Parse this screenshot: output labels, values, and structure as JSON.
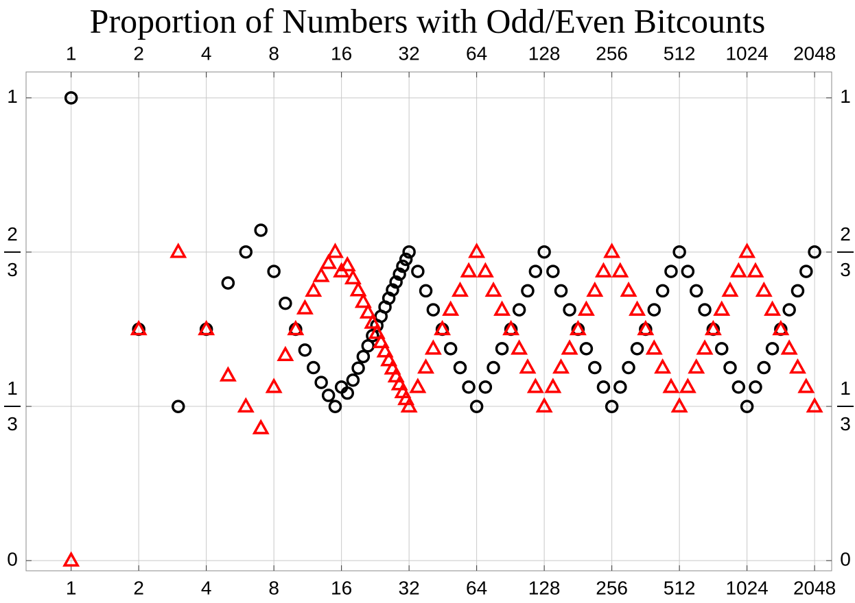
{
  "chart_data": {
    "type": "scatter",
    "title": "Proportion of Numbers with Odd/Even Bitcounts",
    "x": [
      1,
      2,
      3,
      4,
      5,
      6,
      7,
      8,
      9,
      10,
      11,
      12,
      13,
      14,
      15,
      16,
      17,
      18,
      19,
      20,
      21,
      22,
      23,
      24,
      25,
      26,
      27,
      28,
      29,
      30,
      31,
      32,
      35,
      38,
      41,
      45,
      49,
      54,
      59,
      64,
      70,
      76,
      83,
      91,
      99,
      108,
      117,
      128,
      140,
      152,
      166,
      181,
      197,
      215,
      235,
      256,
      279,
      304,
      332,
      362,
      395,
      431,
      470,
      512,
      558,
      609,
      664,
      724,
      790,
      861,
      939,
      1024,
      1117,
      1218,
      1328,
      1448,
      1579,
      1722,
      1878,
      2048
    ],
    "series": [
      {
        "color": "#000000",
        "marker": "circle",
        "values": [
          1,
          0.5,
          0.333,
          0.5,
          0.6,
          0.667,
          0.714,
          0.625,
          0.556,
          0.5,
          0.455,
          0.417,
          0.385,
          0.357,
          0.333,
          0.375,
          0.362,
          0.39,
          0.416,
          0.441,
          0.464,
          0.486,
          0.508,
          0.528,
          0.548,
          0.567,
          0.585,
          0.602,
          0.619,
          0.636,
          0.651,
          0.667,
          0.625,
          0.583,
          0.542,
          0.5,
          0.458,
          0.417,
          0.375,
          0.333,
          0.375,
          0.417,
          0.458,
          0.5,
          0.542,
          0.583,
          0.625,
          0.667,
          0.625,
          0.583,
          0.542,
          0.5,
          0.458,
          0.417,
          0.375,
          0.333,
          0.375,
          0.417,
          0.458,
          0.5,
          0.542,
          0.583,
          0.625,
          0.667,
          0.625,
          0.583,
          0.542,
          0.5,
          0.458,
          0.417,
          0.375,
          0.333,
          0.375,
          0.417,
          0.458,
          0.5,
          0.542,
          0.583,
          0.625,
          0.667
        ]
      },
      {
        "color": "#ff0000",
        "marker": "triangle",
        "values": [
          0,
          0.5,
          0.667,
          0.5,
          0.4,
          0.333,
          0.286,
          0.375,
          0.444,
          0.5,
          0.545,
          0.583,
          0.615,
          0.643,
          0.667,
          0.625,
          0.638,
          0.61,
          0.584,
          0.559,
          0.536,
          0.514,
          0.492,
          0.472,
          0.452,
          0.433,
          0.415,
          0.398,
          0.381,
          0.364,
          0.349,
          0.333,
          0.375,
          0.417,
          0.458,
          0.5,
          0.542,
          0.583,
          0.625,
          0.667,
          0.625,
          0.583,
          0.542,
          0.5,
          0.458,
          0.417,
          0.375,
          0.333,
          0.375,
          0.417,
          0.458,
          0.5,
          0.542,
          0.583,
          0.625,
          0.667,
          0.625,
          0.583,
          0.542,
          0.5,
          0.458,
          0.417,
          0.375,
          0.333,
          0.375,
          0.417,
          0.458,
          0.5,
          0.542,
          0.583,
          0.625,
          0.667,
          0.625,
          0.583,
          0.542,
          0.5,
          0.458,
          0.417,
          0.375,
          0.333
        ]
      }
    ],
    "xscale": "log2",
    "xlim": [
      0.63,
      2440
    ],
    "xticks": [
      1,
      2,
      4,
      8,
      16,
      32,
      64,
      128,
      256,
      512,
      1024,
      2048
    ],
    "ylim": [
      -0.022,
      1.056
    ],
    "yticks": [
      0,
      {
        "value": 0.3333,
        "label": "1/3"
      },
      {
        "value": 0.6667,
        "label": "2/3"
      },
      1
    ],
    "grid": true
  }
}
